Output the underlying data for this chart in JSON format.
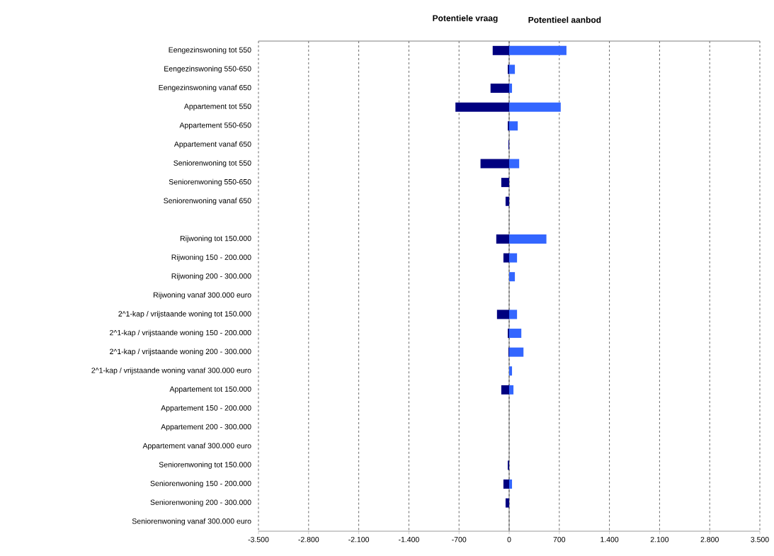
{
  "chart_data": {
    "type": "bar",
    "orientation": "horizontal",
    "categories": [
      "Eengezinswoning tot 550",
      "Eengezinswoning 550-650",
      "Eengezinswoning vanaf 650",
      "Appartement tot 550",
      "Appartement 550-650",
      "Appartement vanaf 650",
      "Seniorenwoning tot 550",
      "Seniorenwoning 550-650",
      "Seniorenwoning vanaf 650",
      null,
      "Rijwoning tot 150.000",
      "Rijwoning 150 - 200.000",
      "Rijwoning 200 - 300.000",
      "Rijwoning vanaf 300.000 euro",
      "2^1-kap / vrijstaande woning tot 150.000",
      "2^1-kap / vrijstaande woning 150 - 200.000",
      "2^1-kap / vrijstaande woning 200 - 300.000",
      "2^1-kap / vrijstaande woning vanaf 300.000 euro",
      "Appartement tot 150.000",
      "Appartement 150 - 200.000",
      "Appartement 200 - 300.000",
      "Appartement vanaf 300.000 euro",
      "Seniorenwoning tot 150.000",
      "Seniorenwoning 150 - 200.000",
      "Seniorenwoning 200 - 300.000",
      "Seniorenwoning vanaf 300.000 euro"
    ],
    "series": [
      {
        "name": "Potentiele vraag",
        "color": "#000080",
        "values": [
          -230,
          -20,
          -260,
          -750,
          -20,
          -10,
          -400,
          -110,
          -50,
          null,
          -180,
          -80,
          0,
          0,
          -170,
          -20,
          -10,
          0,
          -110,
          0,
          0,
          0,
          -20,
          -80,
          -50,
          0
        ]
      },
      {
        "name": "Potentieel aanbod",
        "color": "#3366ff",
        "values": [
          800,
          80,
          40,
          720,
          120,
          0,
          140,
          0,
          0,
          null,
          520,
          110,
          80,
          0,
          110,
          170,
          200,
          40,
          60,
          0,
          0,
          0,
          0,
          40,
          0,
          0
        ]
      }
    ],
    "xlim": [
      -3500,
      3500
    ],
    "xticks": [
      {
        "value": -3500,
        "label": "-3.500"
      },
      {
        "value": -2800,
        "label": "-2.800"
      },
      {
        "value": -2100,
        "label": "-2.100"
      },
      {
        "value": -1400,
        "label": "-1.400"
      },
      -700,
      0,
      700,
      {
        "value": 1400,
        "label": "1.400"
      },
      {
        "value": 2100,
        "label": "2.100"
      },
      {
        "value": 2800,
        "label": "2.800"
      },
      {
        "value": 3500,
        "label": "3.500"
      }
    ],
    "grid": "x",
    "legend": "top"
  }
}
